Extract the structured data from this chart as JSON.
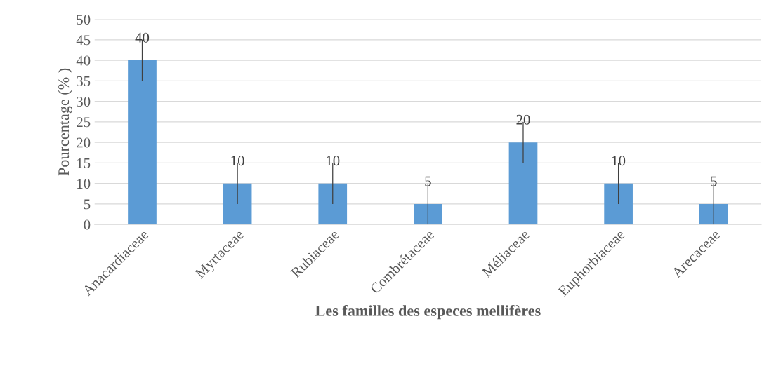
{
  "chart_data": {
    "type": "bar",
    "xlabel": "Les familles des especes mellifères",
    "ylabel": "Pourcentage (% )",
    "categories": [
      "Anacardiaceae",
      "Myrtaceae",
      "Rubiaceae",
      "Combrétaceae",
      "Méliaceae",
      "Euphorbiaceae",
      "Arecaceae"
    ],
    "values": [
      40,
      10,
      10,
      5,
      20,
      10,
      5
    ],
    "errors": [
      5,
      5,
      5,
      5,
      5,
      5,
      5
    ],
    "color": "#5b9bd5",
    "ylim": [
      0,
      50
    ],
    "yticks": [
      0,
      5,
      10,
      15,
      20,
      25,
      30,
      35,
      40,
      45,
      50
    ],
    "grid": "y",
    "data_labels": true
  }
}
